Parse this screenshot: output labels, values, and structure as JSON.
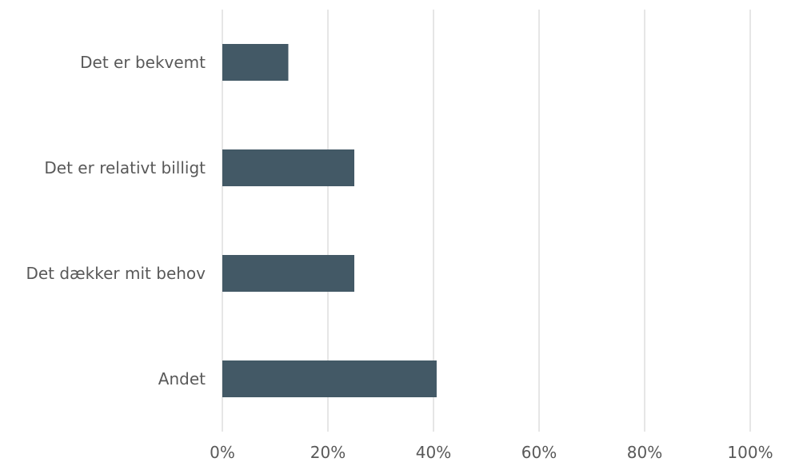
{
  "chart_data": {
    "type": "bar",
    "orientation": "horizontal",
    "categories": [
      "Det er bekvemt",
      "Det er relativt billigt",
      "Det dækker mit behov",
      "Andet"
    ],
    "values": [
      12.5,
      25,
      25,
      40.6
    ],
    "xlim": [
      0,
      100
    ],
    "x_ticks": [
      "0%",
      "20%",
      "40%",
      "60%",
      "80%",
      "100%"
    ],
    "grid": "vertical",
    "bar_color": "#435966",
    "title": "",
    "xlabel": "",
    "ylabel": ""
  }
}
